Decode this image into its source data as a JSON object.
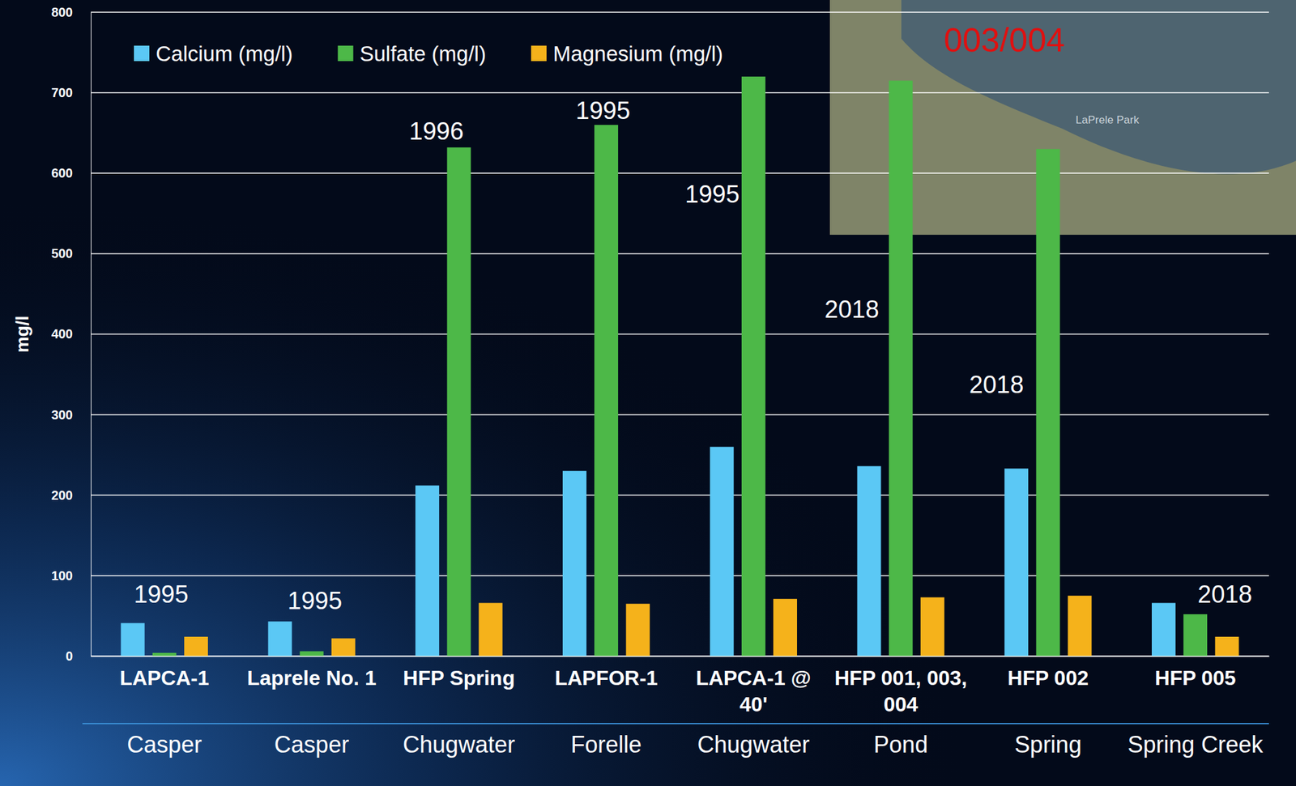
{
  "chart_data": {
    "type": "bar",
    "categories": [
      "LAPCA-1",
      "Laprele No. 1",
      "HFP Spring",
      "LAPFOR-1",
      "LAPCA-1 @ 40'",
      "HFP 001, 003, 004",
      "HFP 002",
      "HFP 005"
    ],
    "formations": [
      "Casper",
      "Casper",
      "Chugwater",
      "Forelle",
      "Chugwater",
      "Pond",
      "Spring",
      "Spring Creek"
    ],
    "years": [
      "1995",
      "1995",
      "1996",
      "1995",
      "1995",
      "2018",
      "2018",
      "2018"
    ],
    "y_label": "mg/l",
    "ylim": [
      0,
      800
    ],
    "yticks": [
      0,
      100,
      200,
      300,
      400,
      500,
      600,
      700,
      800
    ],
    "grid": true,
    "legend": "top-left",
    "series": [
      {
        "name": "Calcium (mg/l)",
        "color": "#5bc8f5",
        "values": [
          41,
          43,
          212,
          230,
          260,
          236,
          233,
          66
        ]
      },
      {
        "name": "Sulfate (mg/l)",
        "color": "#4db848",
        "values": [
          4,
          6,
          632,
          660,
          720,
          715,
          630,
          52
        ]
      },
      {
        "name": "Magnesium (mg/l)",
        "color": "#f5b21b",
        "values": [
          24,
          22,
          66,
          65,
          71,
          73,
          75,
          24
        ]
      }
    ],
    "inset_labels": [
      "003/004",
      "LaPrele Park"
    ]
  }
}
